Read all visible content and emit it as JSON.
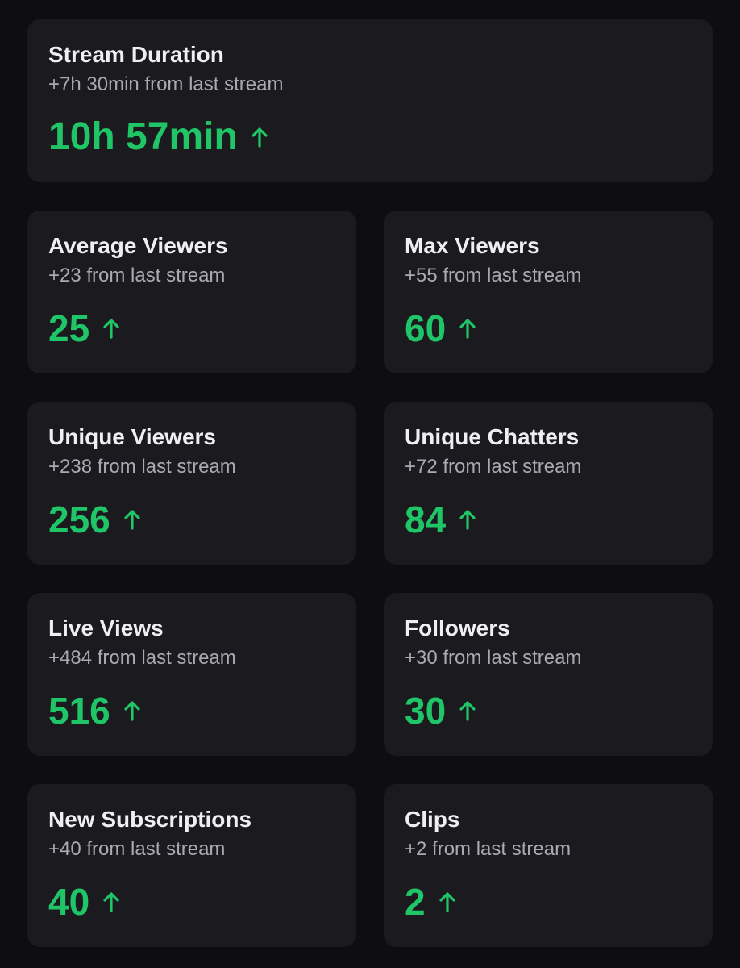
{
  "accent_color": "#1fc567",
  "duration": {
    "title": "Stream Duration",
    "delta": "+7h 30min from last stream",
    "value": "10h 57min",
    "trend_icon": "arrow-up-icon"
  },
  "stats": [
    {
      "title": "Average Viewers",
      "delta": "+23 from last stream",
      "value": "25",
      "trend_icon": "arrow-up-icon"
    },
    {
      "title": "Max Viewers",
      "delta": "+55 from last stream",
      "value": "60",
      "trend_icon": "arrow-up-icon"
    },
    {
      "title": "Unique Viewers",
      "delta": "+238 from last stream",
      "value": "256",
      "trend_icon": "arrow-up-icon"
    },
    {
      "title": "Unique Chatters",
      "delta": "+72 from last stream",
      "value": "84",
      "trend_icon": "arrow-up-icon"
    },
    {
      "title": "Live Views",
      "delta": "+484 from last stream",
      "value": "516",
      "trend_icon": "arrow-up-icon"
    },
    {
      "title": "Followers",
      "delta": "+30 from last stream",
      "value": "30",
      "trend_icon": "arrow-up-icon"
    },
    {
      "title": "New Subscriptions",
      "delta": "+40 from last stream",
      "value": "40",
      "trend_icon": "arrow-up-icon"
    },
    {
      "title": "Clips",
      "delta": "+2 from last stream",
      "value": "2",
      "trend_icon": "arrow-up-icon"
    }
  ]
}
